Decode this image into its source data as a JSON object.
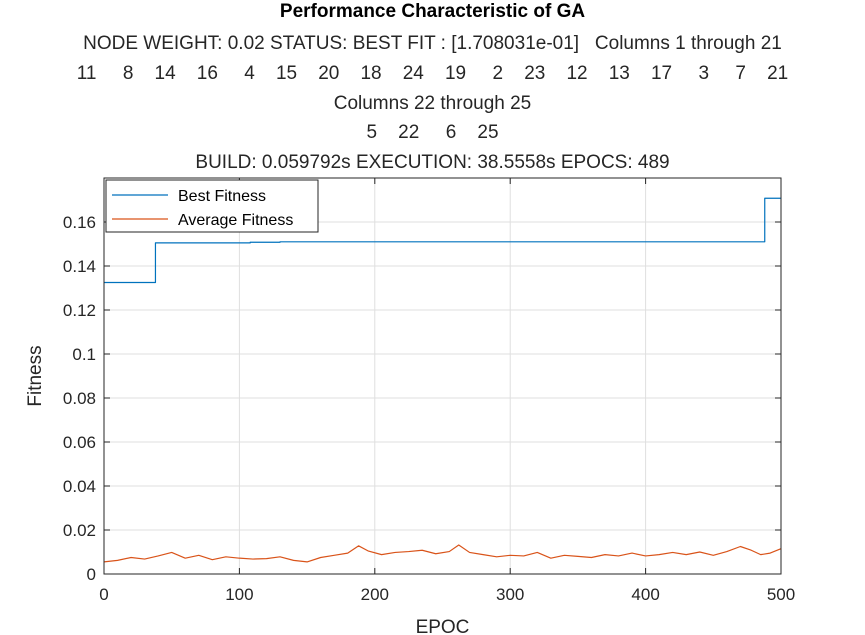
{
  "chart_data": {
    "type": "line",
    "title": "Performance Characteristic of GA",
    "subtitle_lines": [
      "NODE WEIGHT: 0.02 STATUS: BEST FIT : [1.708031e-01]   Columns 1 through 21",
      "11     8    14    16     4    15    20    18    24    19     2    23    12    13    17     3     7    21",
      "Columns 22 through 25",
      "5    22     6    25",
      "BUILD: 0.059792s EXECUTION: 38.5558s EPOCS: 489"
    ],
    "xlabel": "EPOC",
    "ylabel": "Fitness",
    "xlim": [
      0,
      500
    ],
    "ylim": [
      0,
      0.18
    ],
    "xticks": [
      0,
      100,
      200,
      300,
      400,
      500
    ],
    "yticks": [
      0,
      0.02,
      0.04,
      0.06,
      0.08,
      0.1,
      0.12,
      0.14,
      0.16
    ],
    "xtick_labels": [
      "0",
      "100",
      "200",
      "300",
      "400",
      "500"
    ],
    "ytick_labels": [
      "0",
      "0.02",
      "0.04",
      "0.06",
      "0.08",
      "0.1",
      "0.12",
      "0.14",
      "0.16"
    ],
    "grid": true,
    "legend_position": "top-left",
    "series": [
      {
        "name": "Best Fitness",
        "color": "#0072BD",
        "style": "step",
        "points": [
          [
            0,
            0.1325
          ],
          [
            38,
            0.1325
          ],
          [
            38,
            0.1505
          ],
          [
            108,
            0.1505
          ],
          [
            108,
            0.1508
          ],
          [
            130,
            0.1508
          ],
          [
            130,
            0.151
          ],
          [
            488,
            0.151
          ],
          [
            488,
            0.1708
          ],
          [
            500,
            0.1708
          ]
        ]
      },
      {
        "name": "Average Fitness",
        "color": "#D95319",
        "style": "line",
        "points": [
          [
            0,
            0.0055
          ],
          [
            10,
            0.0062
          ],
          [
            20,
            0.0075
          ],
          [
            30,
            0.0068
          ],
          [
            40,
            0.0082
          ],
          [
            50,
            0.0098
          ],
          [
            60,
            0.0072
          ],
          [
            70,
            0.0085
          ],
          [
            80,
            0.0065
          ],
          [
            90,
            0.0078
          ],
          [
            100,
            0.0072
          ],
          [
            110,
            0.0068
          ],
          [
            120,
            0.007
          ],
          [
            130,
            0.0078
          ],
          [
            140,
            0.0062
          ],
          [
            150,
            0.0055
          ],
          [
            160,
            0.0075
          ],
          [
            170,
            0.0085
          ],
          [
            180,
            0.0095
          ],
          [
            188,
            0.0128
          ],
          [
            195,
            0.0105
          ],
          [
            205,
            0.0088
          ],
          [
            215,
            0.0098
          ],
          [
            225,
            0.0102
          ],
          [
            235,
            0.0108
          ],
          [
            245,
            0.0092
          ],
          [
            255,
            0.0102
          ],
          [
            262,
            0.0132
          ],
          [
            270,
            0.0098
          ],
          [
            280,
            0.0088
          ],
          [
            290,
            0.0078
          ],
          [
            300,
            0.0085
          ],
          [
            310,
            0.0082
          ],
          [
            320,
            0.0098
          ],
          [
            330,
            0.0072
          ],
          [
            340,
            0.0085
          ],
          [
            350,
            0.008
          ],
          [
            360,
            0.0075
          ],
          [
            370,
            0.0088
          ],
          [
            380,
            0.0082
          ],
          [
            390,
            0.0095
          ],
          [
            400,
            0.0082
          ],
          [
            410,
            0.0088
          ],
          [
            420,
            0.0098
          ],
          [
            430,
            0.0088
          ],
          [
            440,
            0.01
          ],
          [
            450,
            0.0085
          ],
          [
            460,
            0.0102
          ],
          [
            470,
            0.0125
          ],
          [
            478,
            0.0108
          ],
          [
            485,
            0.0088
          ],
          [
            492,
            0.0095
          ],
          [
            500,
            0.0115
          ]
        ]
      }
    ]
  }
}
